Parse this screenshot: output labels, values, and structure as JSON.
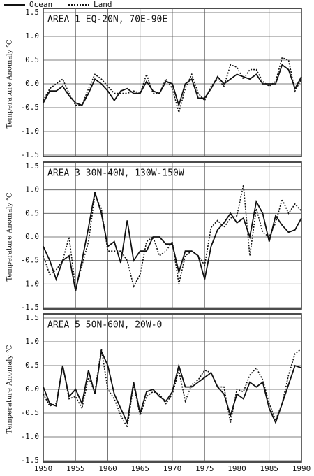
{
  "chart_data": [
    {
      "type": "line",
      "title": "AREA 1  EQ-20N, 70E-90E",
      "y_label": "Temperature Anomaly ℃",
      "x": [
        1950,
        1951,
        1952,
        1953,
        1954,
        1955,
        1956,
        1957,
        1958,
        1959,
        1960,
        1961,
        1962,
        1963,
        1964,
        1965,
        1966,
        1967,
        1968,
        1969,
        1970,
        1971,
        1972,
        1973,
        1974,
        1975,
        1976,
        1977,
        1978,
        1979,
        1980,
        1981,
        1982,
        1983,
        1984,
        1985,
        1986,
        1987,
        1988,
        1989,
        1990
      ],
      "series": [
        {
          "name": "Ocean",
          "color": "#111111",
          "dash": "solid",
          "values": [
            -0.4,
            -0.15,
            -0.15,
            -0.05,
            -0.25,
            -0.4,
            -0.45,
            -0.2,
            0.1,
            0.0,
            -0.15,
            -0.35,
            -0.15,
            -0.1,
            -0.2,
            -0.2,
            0.05,
            -0.15,
            -0.2,
            0.05,
            0.0,
            -0.45,
            0.0,
            0.1,
            -0.3,
            -0.3,
            -0.1,
            0.15,
            0.0,
            0.1,
            0.2,
            0.15,
            0.1,
            0.2,
            0.0,
            0.0,
            0.0,
            0.4,
            0.3,
            -0.1,
            0.15
          ]
        },
        {
          "name": "Land",
          "color": "#111111",
          "dash": "dotted",
          "values": [
            -0.35,
            -0.1,
            0.0,
            0.1,
            -0.2,
            -0.45,
            -0.45,
            -0.1,
            0.2,
            0.1,
            -0.05,
            -0.2,
            -0.2,
            -0.2,
            -0.15,
            -0.2,
            0.2,
            -0.2,
            -0.2,
            0.1,
            -0.1,
            -0.6,
            -0.1,
            0.2,
            -0.2,
            -0.35,
            -0.05,
            0.1,
            -0.05,
            0.4,
            0.35,
            0.1,
            0.3,
            0.3,
            0.05,
            -0.05,
            0.05,
            0.55,
            0.5,
            -0.15,
            0.1
          ]
        }
      ],
      "xlim": [
        1950,
        1990
      ],
      "xticks": [
        1950,
        1955,
        1960,
        1965,
        1970,
        1975,
        1980,
        1985,
        1990
      ],
      "ylim": [
        -1.5,
        1.5
      ],
      "yticks": [
        1.5,
        {
          "value": 1,
          "label": "1.0"
        },
        0.5,
        {
          "value": 0,
          "label": "0.0"
        },
        -0.5,
        {
          "value": -1,
          "label": "-1.0"
        },
        -1.5
      ],
      "grid": true
    },
    {
      "type": "line",
      "title": "AREA 3  30N-40N, 130W-150W",
      "y_label": "Temperature Anomaly ℃",
      "x": [
        1950,
        1951,
        1952,
        1953,
        1954,
        1955,
        1956,
        1957,
        1958,
        1959,
        1960,
        1961,
        1962,
        1963,
        1964,
        1965,
        1966,
        1967,
        1968,
        1969,
        1970,
        1971,
        1972,
        1973,
        1974,
        1975,
        1976,
        1977,
        1978,
        1979,
        1980,
        1981,
        1982,
        1983,
        1984,
        1985,
        1986,
        1987,
        1988,
        1989,
        1990
      ],
      "series": [
        {
          "color": "#111111",
          "dash": "solid",
          "values": [
            -0.2,
            -0.5,
            -0.9,
            -0.5,
            -0.4,
            -1.15,
            -0.5,
            0.2,
            0.95,
            0.5,
            -0.2,
            -0.1,
            -0.55,
            0.35,
            -0.5,
            -0.3,
            -0.3,
            0.0,
            0.0,
            -0.15,
            -0.15,
            -0.75,
            -0.3,
            -0.3,
            -0.4,
            -0.9,
            -0.2,
            0.15,
            0.3,
            0.5,
            0.3,
            0.4,
            0.0,
            0.75,
            0.5,
            -0.1,
            0.45,
            0.25,
            0.1,
            0.15,
            0.4
          ]
        },
        {
          "color": "#111111",
          "dash": "dotted",
          "values": [
            -0.4,
            -0.8,
            -0.7,
            -0.5,
            0.0,
            -1.1,
            -0.6,
            -0.1,
            0.9,
            0.6,
            -0.3,
            -0.3,
            -0.3,
            -0.5,
            -1.05,
            -0.8,
            -0.1,
            0.0,
            -0.4,
            -0.3,
            -0.1,
            -1.0,
            -0.4,
            -0.3,
            -0.4,
            -0.6,
            0.2,
            0.35,
            0.2,
            0.4,
            0.45,
            1.1,
            -0.4,
            0.6,
            0.1,
            0.0,
            0.3,
            0.8,
            0.5,
            0.7,
            0.55
          ]
        }
      ],
      "xlim": [
        1950,
        1990
      ],
      "xticks": [
        1950,
        1955,
        1960,
        1965,
        1970,
        1975,
        1980,
        1985,
        1990
      ],
      "ylim": [
        -1.5,
        1.5
      ],
      "yticks": [
        1.5,
        {
          "value": 1,
          "label": "1.0"
        },
        0.5,
        {
          "value": 0,
          "label": "0.0"
        },
        -0.5,
        {
          "value": -1,
          "label": "-1.0"
        },
        -1.5
      ],
      "grid": true
    },
    {
      "type": "line",
      "title": "AREA 5  50N-60N, 20W-0",
      "y_label": "Temperature Anomaly ℃",
      "x": [
        1950,
        1951,
        1952,
        1953,
        1954,
        1955,
        1956,
        1957,
        1958,
        1959,
        1960,
        1961,
        1962,
        1963,
        1964,
        1965,
        1966,
        1967,
        1968,
        1969,
        1970,
        1971,
        1972,
        1973,
        1974,
        1975,
        1976,
        1977,
        1978,
        1979,
        1980,
        1981,
        1982,
        1983,
        1984,
        1985,
        1986,
        1987,
        1988,
        1989,
        1990
      ],
      "series": [
        {
          "color": "#111111",
          "dash": "solid",
          "values": [
            0.05,
            -0.3,
            -0.35,
            0.5,
            -0.15,
            0.0,
            -0.3,
            0.4,
            -0.1,
            0.8,
            0.5,
            -0.1,
            -0.4,
            -0.7,
            0.15,
            -0.5,
            -0.05,
            0.0,
            -0.15,
            -0.25,
            -0.05,
            0.5,
            0.05,
            0.05,
            0.15,
            0.25,
            0.35,
            0.05,
            -0.1,
            -0.55,
            -0.1,
            -0.2,
            0.15,
            0.05,
            0.15,
            -0.4,
            -0.7,
            -0.3,
            0.1,
            0.5,
            0.45
          ]
        },
        {
          "color": "#111111",
          "dash": "dotted",
          "values": [
            -0.1,
            -0.35,
            -0.3,
            0.5,
            -0.2,
            -0.15,
            -0.4,
            0.25,
            -0.05,
            0.85,
            0.0,
            -0.2,
            -0.55,
            -0.8,
            0.1,
            -0.55,
            -0.15,
            -0.05,
            -0.1,
            -0.3,
            -0.1,
            0.4,
            -0.25,
            0.1,
            0.2,
            0.4,
            0.35,
            0.05,
            0.05,
            -0.7,
            0.0,
            -0.05,
            0.3,
            0.45,
            0.2,
            -0.3,
            -0.65,
            -0.3,
            0.3,
            0.75,
            0.85
          ]
        }
      ],
      "xlim": [
        1950,
        1990
      ],
      "xticks": [
        1950,
        1955,
        1960,
        1965,
        1970,
        1975,
        1980,
        1985,
        1990
      ],
      "ylim": [
        -1.5,
        1.5
      ],
      "yticks": [
        1.5,
        {
          "value": 1,
          "label": "1.0"
        },
        0.5,
        {
          "value": 0,
          "label": "0.0"
        },
        -0.5,
        {
          "value": -1,
          "label": "-1.0"
        },
        -1.5
      ],
      "grid": true,
      "x_tick_labels": true
    }
  ]
}
